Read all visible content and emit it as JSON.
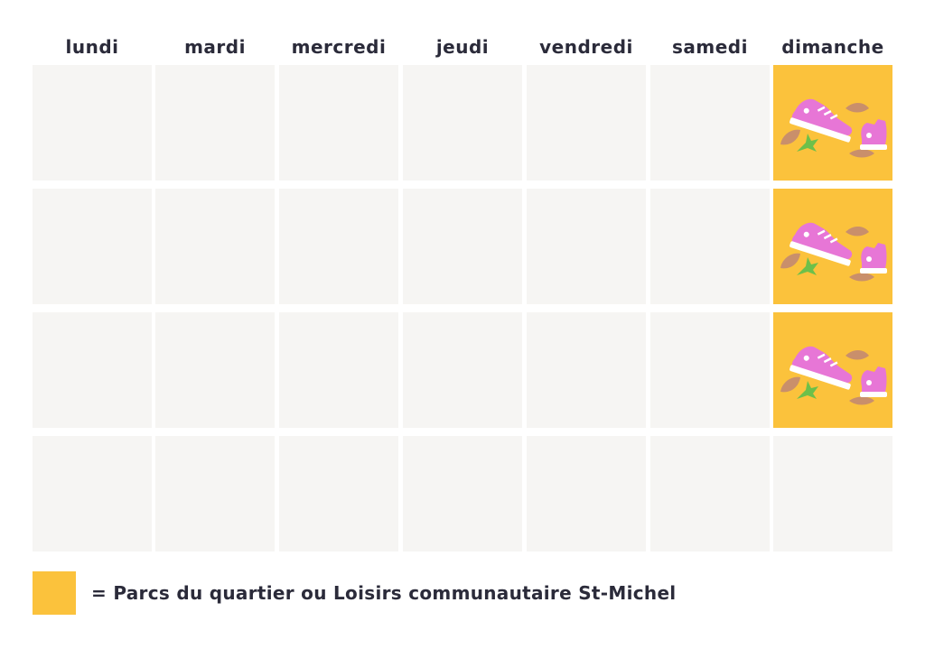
{
  "days": [
    "lundi",
    "mardi",
    "mercredi",
    "jeudi",
    "vendredi",
    "samedi",
    "dimanche"
  ],
  "grid": {
    "weeks": 4,
    "activity_cells": [
      {
        "week": 1,
        "day": "dimanche",
        "icon": "sneakers-leaves-icon"
      },
      {
        "week": 2,
        "day": "dimanche",
        "icon": "sneakers-leaves-icon"
      },
      {
        "week": 3,
        "day": "dimanche",
        "icon": "sneakers-leaves-icon"
      }
    ]
  },
  "legend": {
    "text": "= Parcs du quartier ou Loisirs communautaire St-Michel"
  },
  "colors": {
    "activity": "#fbc23c",
    "empty_cell": "#f6f5f3",
    "sneaker": "#e776d6",
    "leaf_brown": "#c98f6b",
    "leaf_green": "#6cc04a"
  }
}
